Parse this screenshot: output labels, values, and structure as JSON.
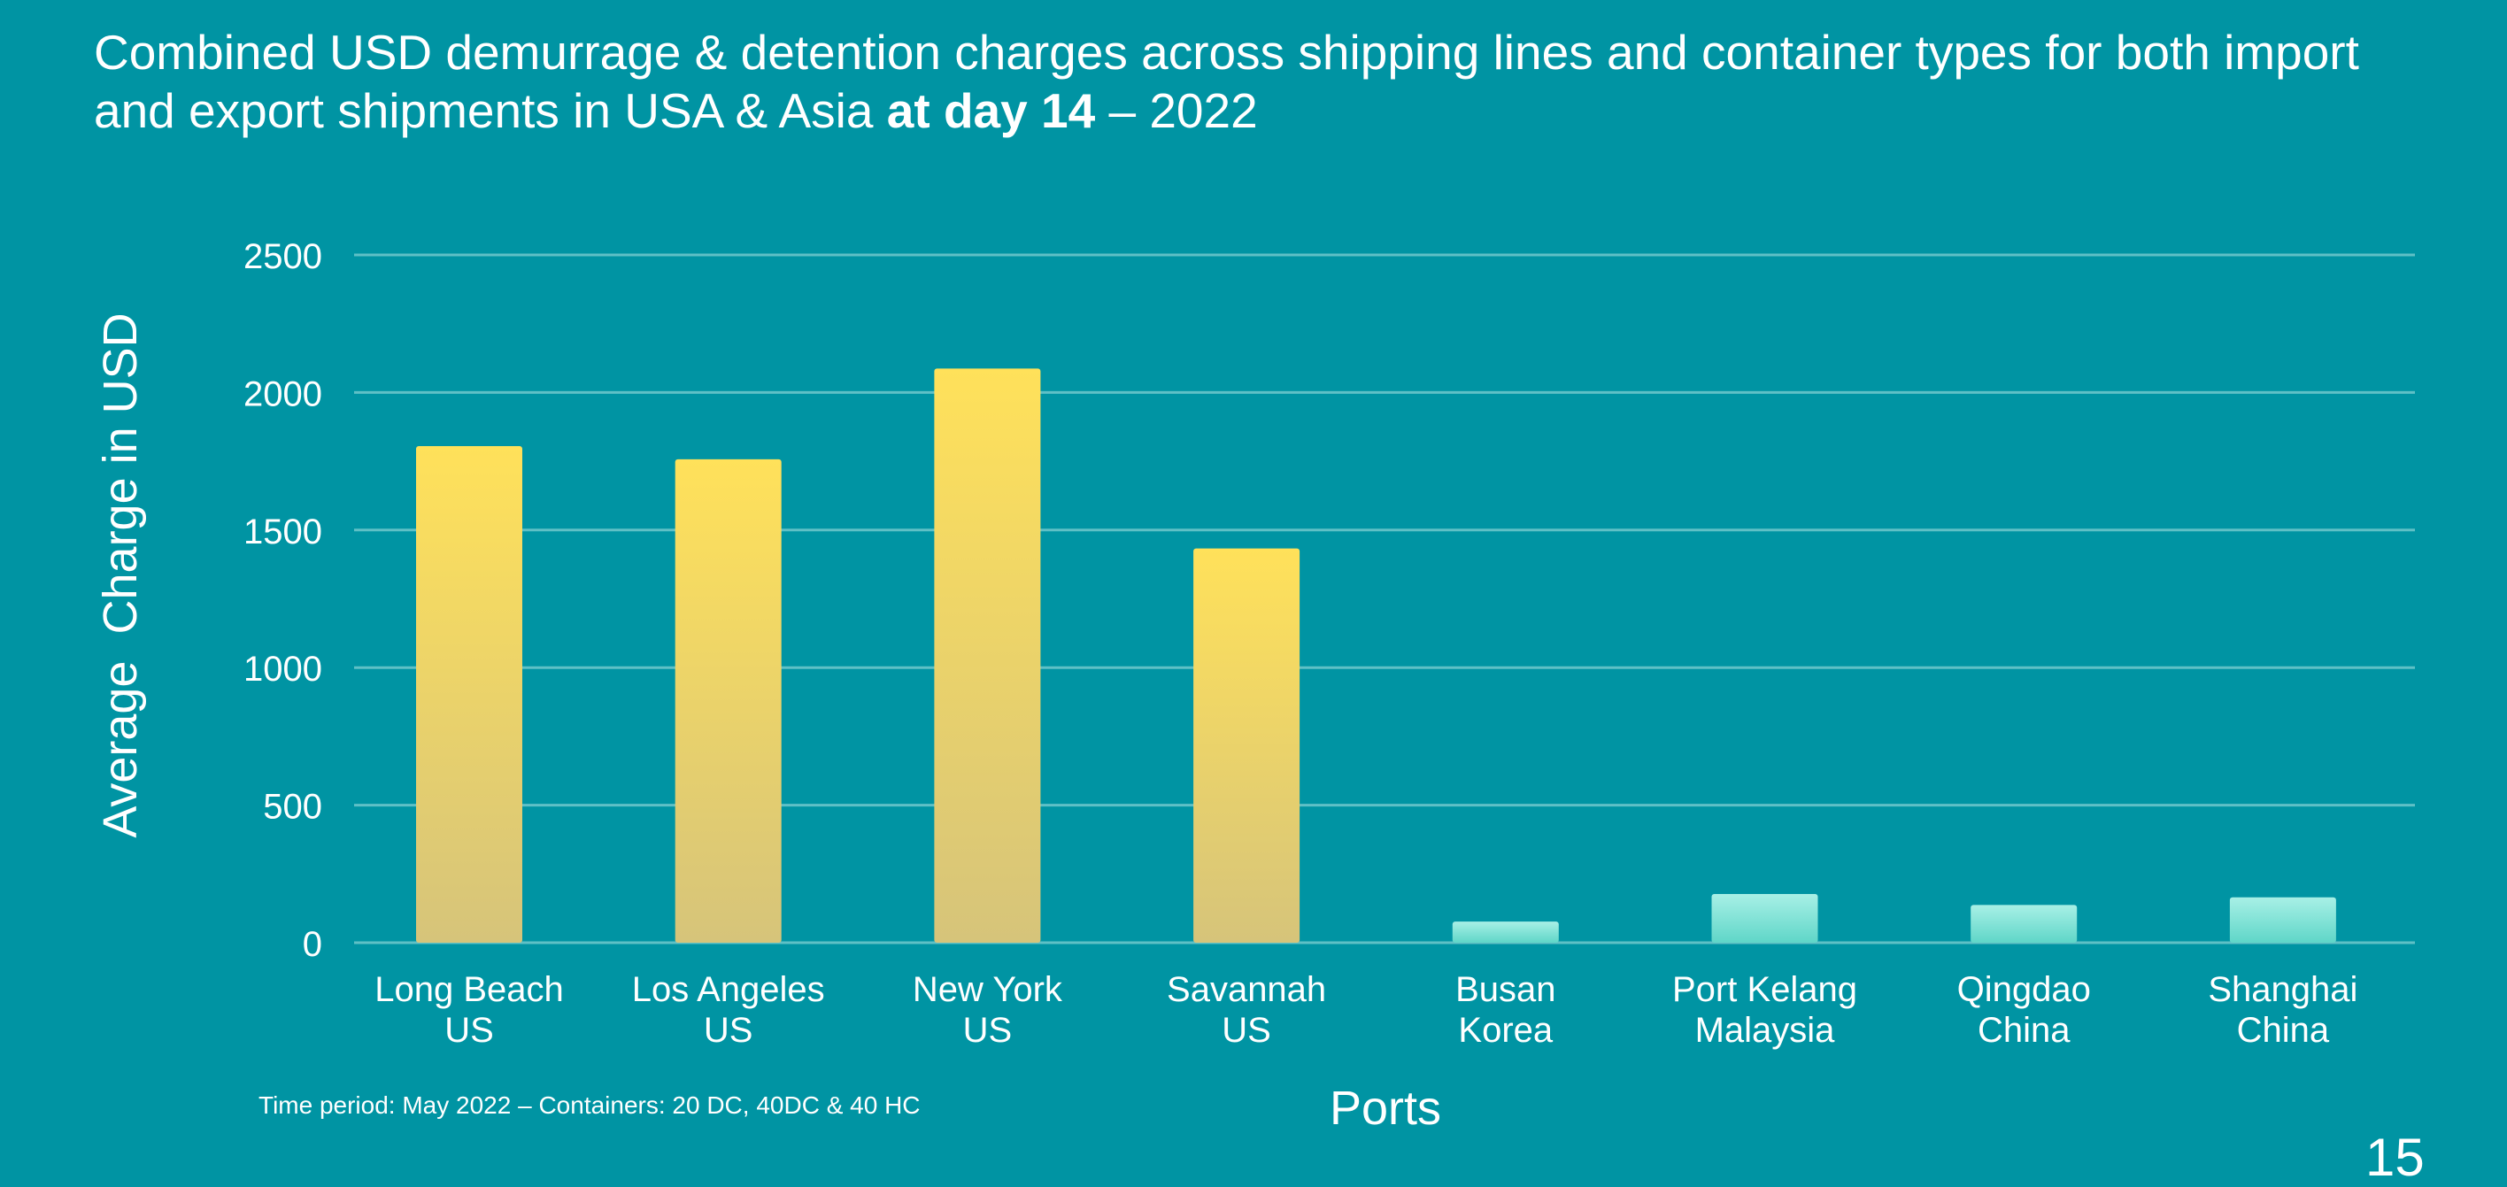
{
  "title": {
    "part1": "Combined USD demurrage & detention charges across shipping lines and container types for both import and export shipments in USA & Asia ",
    "bold": "at day 14",
    "part2": " – 2022"
  },
  "footnote": "Time period: May 2022 – Containers: 20 DC, 40DC & 40 HC",
  "page_number": "15",
  "colors": {
    "background": "#0094a3",
    "us_bar_top": "#ffe15a",
    "us_bar_bottom": "#d6c47a",
    "asia_bar_top": "#a8f0e6",
    "asia_bar_bottom": "#5fd6c8",
    "gridline": "#5fc0c6",
    "text": "#ffffff"
  },
  "chart_data": {
    "type": "bar",
    "title": "Combined USD demurrage & detention charges across shipping lines and container types for both import and export shipments in USA & Asia at day 14 – 2022",
    "xlabel": "Ports",
    "ylabel": "Average  Charge in USD",
    "ylim": [
      0,
      2500
    ],
    "yticks": [
      0,
      500,
      1000,
      1500,
      2000,
      2500
    ],
    "grid": true,
    "categories": [
      [
        "Long Beach",
        "US"
      ],
      [
        "Los Angeles",
        "US"
      ],
      [
        "New York",
        "US"
      ],
      [
        "Savannah",
        "US"
      ],
      [
        "Busan",
        "Korea"
      ],
      [
        "Port Kelang",
        "Malaysia"
      ],
      [
        "Qingdao",
        "China"
      ],
      [
        "Shanghai",
        "China"
      ]
    ],
    "values": [
      1805,
      1757,
      2087,
      1433,
      77,
      177,
      137,
      165
    ],
    "region": [
      "US",
      "US",
      "US",
      "US",
      "Asia",
      "Asia",
      "Asia",
      "Asia"
    ]
  }
}
